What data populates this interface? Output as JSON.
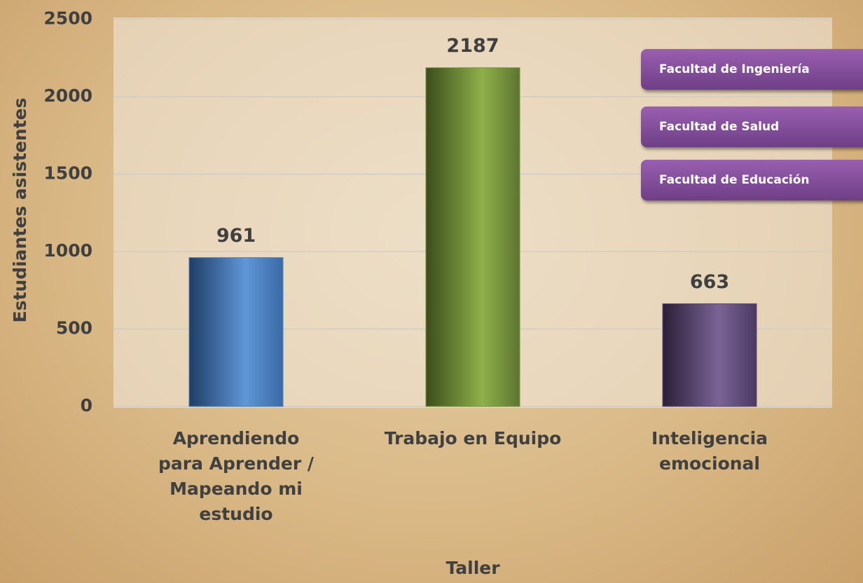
{
  "chart_data": {
    "type": "bar",
    "xlabel": "Taller",
    "ylabel": "Estudiantes asistentes",
    "categories": [
      "Aprendiendo para Aprender / Mapeando mi estudio",
      "Trabajo en Equipo",
      "Inteligencia emocional"
    ],
    "values": [
      961,
      2187,
      663
    ],
    "colors": [
      "#4f81bd",
      "#77933c",
      "#5f4b7a"
    ],
    "ylim": [
      0,
      2500
    ],
    "yticks": [
      0,
      500,
      1000,
      1500,
      2000,
      2500
    ],
    "grid": true,
    "annotations": [
      "Facultad de Ingeniería",
      "Facultad de Salud",
      "Facultad de Educación"
    ]
  }
}
